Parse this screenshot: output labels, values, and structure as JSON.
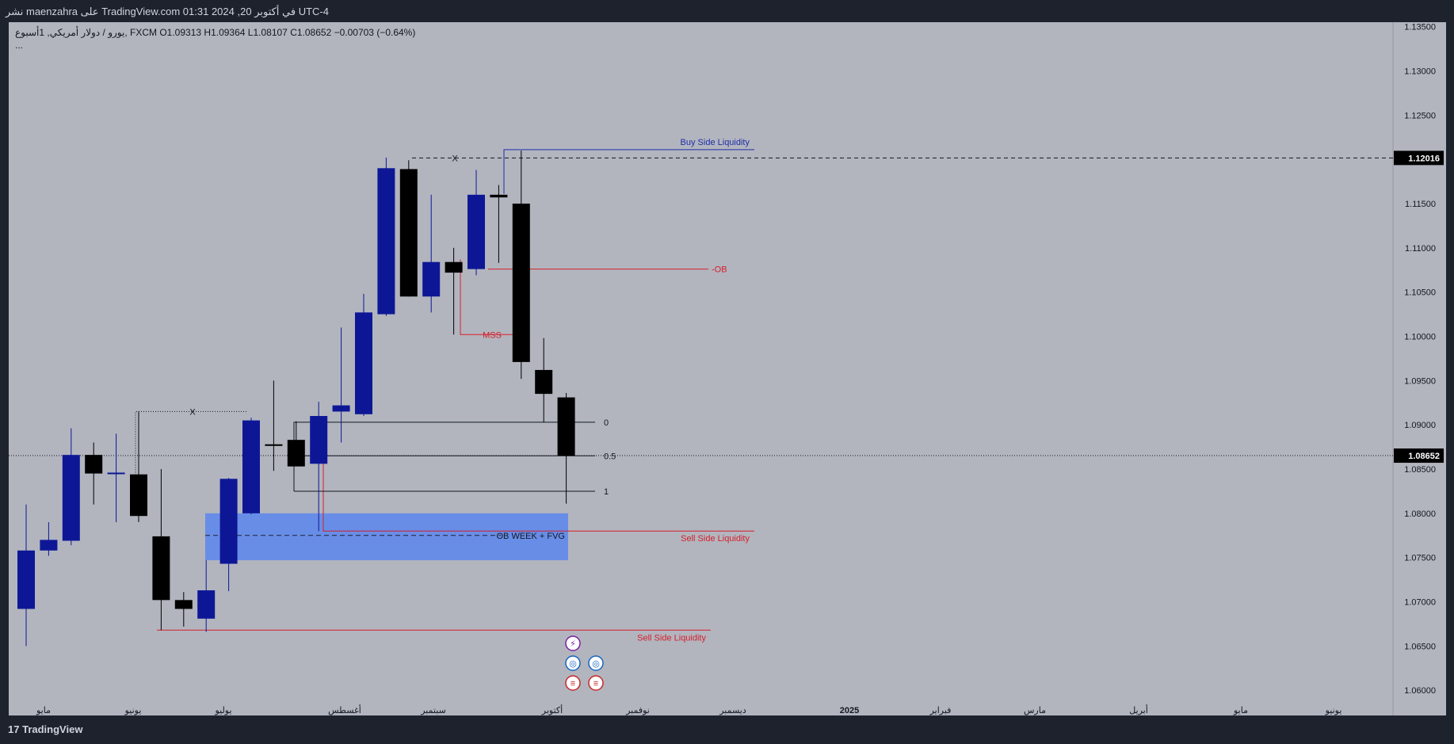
{
  "header": {
    "text": "نشر maenzahra على TradingView.com في أكتوبر 20, 2024 01:31 UTC-4"
  },
  "legend": {
    "symbol": "يورو / دولار أمريكي, 1أسبوع, FXCM",
    "open": "O1.09313",
    "high": "H1.09364",
    "low": "L1.08107",
    "close": "C1.08652",
    "change": "−0.00703 (−0.64%)",
    "more": "..."
  },
  "footer": {
    "logo_mark": "17",
    "logo_text": "TradingView"
  },
  "colors": {
    "background": "#b2b5be",
    "bull_candle": "#0d1796",
    "bear_candle": "#000000",
    "liquidity_blue": "#1f2ea8",
    "liquidity_red": "#d61f2c",
    "ob_zone": "#5b86ee",
    "price_label_bg": "#000000"
  },
  "chart_data": {
    "type": "candlestick",
    "title": "",
    "ylim": [
      1.0585,
      1.1355
    ],
    "y_ticks": [
      "1.13500",
      "1.13000",
      "1.12500",
      "1.12000",
      "1.11500",
      "1.11000",
      "1.10500",
      "1.10000",
      "1.09500",
      "1.09000",
      "1.08500",
      "1.08000",
      "1.07500",
      "1.07000",
      "1.06500",
      "1.06000"
    ],
    "x_labels": [
      "مايو",
      "يونيو",
      "يوليو",
      "أغسطس",
      "سبتمبر",
      "أكتوبر",
      "نوفمبر",
      "ديسمبر",
      "2025",
      "فبراير",
      "مارس",
      "أبريل",
      "مايو",
      "يونيو"
    ],
    "x_label_bold": "2025",
    "candles": [
      {
        "o": 1.0692,
        "h": 1.081,
        "l": 1.065,
        "c": 1.0758
      },
      {
        "o": 1.0758,
        "h": 1.079,
        "l": 1.0752,
        "c": 1.077
      },
      {
        "o": 1.0769,
        "h": 1.0896,
        "l": 1.0764,
        "c": 1.0866
      },
      {
        "o": 1.0866,
        "h": 1.088,
        "l": 1.081,
        "c": 1.0845
      },
      {
        "o": 1.0845,
        "h": 1.089,
        "l": 1.079,
        "c": 1.0846
      },
      {
        "o": 1.0844,
        "h": 1.0915,
        "l": 1.079,
        "c": 1.0797
      },
      {
        "o": 1.0774,
        "h": 1.085,
        "l": 1.0668,
        "c": 1.0702
      },
      {
        "o": 1.0702,
        "h": 1.0711,
        "l": 1.0672,
        "c": 1.0692
      },
      {
        "o": 1.0681,
        "h": 1.0747,
        "l": 1.0666,
        "c": 1.0713
      },
      {
        "o": 1.0743,
        "h": 1.084,
        "l": 1.0712,
        "c": 1.0839
      },
      {
        "o": 1.08,
        "h": 1.0908,
        "l": 1.0799,
        "c": 1.0905
      },
      {
        "o": 1.0878,
        "h": 1.095,
        "l": 1.0848,
        "c": 1.0877
      },
      {
        "o": 1.0883,
        "h": 1.0904,
        "l": 1.0854,
        "c": 1.0853
      },
      {
        "o": 1.0856,
        "h": 1.0926,
        "l": 1.078,
        "c": 1.091
      },
      {
        "o": 1.0915,
        "h": 1.101,
        "l": 1.088,
        "c": 1.0922
      },
      {
        "o": 1.0912,
        "h": 1.1048,
        "l": 1.091,
        "c": 1.1027
      },
      {
        "o": 1.1025,
        "h": 1.1202,
        "l": 1.1023,
        "c": 1.119
      },
      {
        "o": 1.1189,
        "h": 1.1199,
        "l": 1.1045,
        "c": 1.1045
      },
      {
        "o": 1.1045,
        "h": 1.116,
        "l": 1.1027,
        "c": 1.1084
      },
      {
        "o": 1.1084,
        "h": 1.11,
        "l": 1.1002,
        "c": 1.1072
      },
      {
        "o": 1.1076,
        "h": 1.1188,
        "l": 1.1069,
        "c": 1.116
      },
      {
        "o": 1.116,
        "h": 1.1171,
        "l": 1.1083,
        "c": 1.1157
      },
      {
        "o": 1.115,
        "h": 1.121,
        "l": 1.0952,
        "c": 1.0971
      },
      {
        "o": 1.0962,
        "h": 1.0998,
        "l": 1.0903,
        "c": 1.0935
      },
      {
        "o": 1.0931,
        "h": 1.0936,
        "l": 1.0811,
        "c": 1.0865
      }
    ],
    "price_labels": {
      "high_level": "1.12016",
      "current": "1.08652"
    },
    "fib": {
      "top": 1.0903,
      "mid": 1.0865,
      "bottom": 1.0825,
      "labels": [
        "0",
        "0.5",
        "1"
      ]
    },
    "annotations": {
      "buy_side_liquidity": "Buy Side Liquidity",
      "ob": "-OB",
      "mss": "MSS",
      "sell_side_liquidity_1": "Sell Side Liquidity",
      "sell_side_liquidity_2": "Sell Side Liquidity",
      "ob_week_fvg": "OB WEEK + FVG",
      "x_mark_1": "X",
      "x_mark_2": "X"
    },
    "levels": {
      "buy_side_liquidity": 1.1211,
      "x_top": 1.12016,
      "ob": 1.1076,
      "mss": 1.1002,
      "sell_side_liquidity_1": 1.078,
      "sell_side_liquidity_2": 1.0668,
      "x_left": 1.0915,
      "ob_zone_top": 1.08,
      "ob_zone_bottom": 1.0747,
      "ob_zone_mid": 1.0775
    },
    "events": [
      "lightning",
      "globe",
      "globe",
      "us-flag",
      "us-flag"
    ]
  }
}
